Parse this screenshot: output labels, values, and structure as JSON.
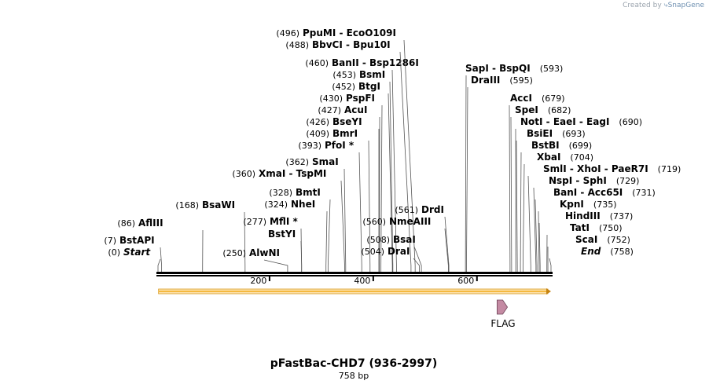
{
  "credit": {
    "prefix": "Created by",
    "brand": "SnapGene"
  },
  "plasmid": {
    "name": "pFastBac-CHD7 (936-2997)",
    "size_label": "758 bp",
    "length": 758
  },
  "axis": {
    "ticks": [
      200,
      400,
      600
    ]
  },
  "feature": {
    "name": "FLAG",
    "start": 657,
    "end": 680,
    "color": "#c48aa3"
  },
  "orf": {
    "start": 1,
    "end": 758,
    "color": "#f5b93f"
  },
  "sites": [
    {
      "pos": 0,
      "pos_label": "(0)",
      "name": "Start",
      "italic": true
    },
    {
      "pos": 7,
      "pos_label": "(7)",
      "name": "BstAPI"
    },
    {
      "pos": 86,
      "pos_label": "(86)",
      "name": "AflIII"
    },
    {
      "pos": 168,
      "pos_label": "(168)",
      "name": "BsaWI"
    },
    {
      "pos": 250,
      "pos_label": "(250)",
      "name": "AlwNI"
    },
    {
      "pos": 277,
      "pos_label": "(277)",
      "name": "MflI *"
    },
    {
      "pos": 277,
      "pos_label": "",
      "name": "BstYI"
    },
    {
      "pos": 324,
      "pos_label": "(324)",
      "name": "NheI"
    },
    {
      "pos": 328,
      "pos_label": "(328)",
      "name": "BmtI"
    },
    {
      "pos": 360,
      "pos_label": "(360)",
      "name": "XmaI  - TspMI"
    },
    {
      "pos": 362,
      "pos_label": "(362)",
      "name": "SmaI"
    },
    {
      "pos": 393,
      "pos_label": "(393)",
      "name": "PfoI *"
    },
    {
      "pos": 409,
      "pos_label": "(409)",
      "name": "BmrI"
    },
    {
      "pos": 426,
      "pos_label": "(426)",
      "name": "BseYI"
    },
    {
      "pos": 427,
      "pos_label": "(427)",
      "name": "AcuI"
    },
    {
      "pos": 430,
      "pos_label": "(430)",
      "name": "PspFI"
    },
    {
      "pos": 452,
      "pos_label": "(452)",
      "name": "BtgI"
    },
    {
      "pos": 453,
      "pos_label": "(453)",
      "name": "BsmI"
    },
    {
      "pos": 460,
      "pos_label": "(460)",
      "name": "BanII  - Bsp1286I"
    },
    {
      "pos": 488,
      "pos_label": "(488)",
      "name": "BbvCI  - Bpu10I"
    },
    {
      "pos": 496,
      "pos_label": "(496)",
      "name": "PpuMI  - EcoO109I"
    },
    {
      "pos": 504,
      "pos_label": "(504)",
      "name": "DraI"
    },
    {
      "pos": 508,
      "pos_label": "(508)",
      "name": "BsaI"
    },
    {
      "pos": 560,
      "pos_label": "(560)",
      "name": "NmeAIII"
    },
    {
      "pos": 561,
      "pos_label": "(561)",
      "name": "DrdI"
    },
    {
      "pos": 593,
      "pos_label": "(593)",
      "name": "SapI  - BspQI"
    },
    {
      "pos": 595,
      "pos_label": "(595)",
      "name": "DraIII"
    },
    {
      "pos": 679,
      "pos_label": "(679)",
      "name": "AccI"
    },
    {
      "pos": 682,
      "pos_label": "(682)",
      "name": "SpeI"
    },
    {
      "pos": 690,
      "pos_label": "(690)",
      "name": "NotI  - EaeI  - EagI"
    },
    {
      "pos": 693,
      "pos_label": "(693)",
      "name": "BsiEI"
    },
    {
      "pos": 699,
      "pos_label": "(699)",
      "name": "BstBI"
    },
    {
      "pos": 704,
      "pos_label": "(704)",
      "name": "XbaI"
    },
    {
      "pos": 719,
      "pos_label": "(719)",
      "name": "SmlI  - XhoI  - PaeR7I"
    },
    {
      "pos": 729,
      "pos_label": "(729)",
      "name": "NspI  - SphI"
    },
    {
      "pos": 731,
      "pos_label": "(731)",
      "name": "BanI  - Acc65I"
    },
    {
      "pos": 735,
      "pos_label": "(735)",
      "name": "KpnI"
    },
    {
      "pos": 737,
      "pos_label": "(737)",
      "name": "HindIII"
    },
    {
      "pos": 750,
      "pos_label": "(750)",
      "name": "TatI"
    },
    {
      "pos": 752,
      "pos_label": "(752)",
      "name": "ScaI"
    },
    {
      "pos": 758,
      "pos_label": "(758)",
      "name": "End",
      "italic": true
    }
  ]
}
